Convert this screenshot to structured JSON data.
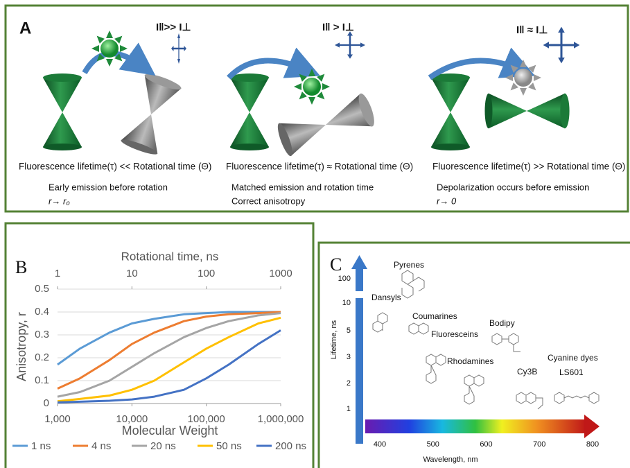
{
  "panel_a": {
    "label": "A",
    "scenarios": [
      {
        "header": "I‖>> I⊥",
        "caption": "Fluorescence lifetime(τ) << Rotational time (Θ)",
        "lines": [
          "Early emission before rotation",
          "r→ r₀"
        ]
      },
      {
        "header": "I‖ > I⊥",
        "caption": "Fluorescence lifetime(τ) ≈ Rotational time (Θ)",
        "lines": [
          "Matched emission and rotation time",
          "Correct anisotropy"
        ]
      },
      {
        "header": "I‖ ≈ I⊥",
        "caption": "Fluorescence lifetime(τ) >> Rotational time (Θ)",
        "lines": [
          "Depolarization occurs before emission",
          "r→ 0"
        ]
      }
    ]
  },
  "chart_data": {
    "type": "line",
    "label": "B",
    "x_label": "Molecular Weight",
    "y_label": "Anisotropy, r",
    "x2_label": "Rotational time, ns",
    "x": [
      1000,
      2000,
      5000,
      10000,
      20000,
      50000,
      100000,
      200000,
      500000,
      1000000
    ],
    "series": [
      {
        "name": "1 ns",
        "color": "#5b9bd5",
        "values": [
          0.17,
          0.24,
          0.31,
          0.35,
          0.37,
          0.39,
          0.395,
          0.4,
          0.4,
          0.4
        ]
      },
      {
        "name": "4 ns",
        "color": "#ed7d31",
        "values": [
          0.065,
          0.11,
          0.19,
          0.26,
          0.31,
          0.36,
          0.38,
          0.39,
          0.395,
          0.4
        ]
      },
      {
        "name": "20 ns",
        "color": "#a5a5a5",
        "values": [
          0.03,
          0.05,
          0.1,
          0.16,
          0.22,
          0.29,
          0.33,
          0.36,
          0.385,
          0.395
        ]
      },
      {
        "name": "50 ns",
        "color": "#ffc000",
        "values": [
          0.01,
          0.02,
          0.035,
          0.06,
          0.1,
          0.18,
          0.24,
          0.29,
          0.35,
          0.375
        ]
      },
      {
        "name": "200 ns",
        "color": "#4472c4",
        "values": [
          0.005,
          0.008,
          0.012,
          0.018,
          0.03,
          0.06,
          0.11,
          0.17,
          0.26,
          0.32
        ]
      }
    ],
    "xscale": "log",
    "xlim": [
      1000,
      1000000
    ],
    "xticks": [
      {
        "value": 1000,
        "label": "1,000"
      },
      {
        "value": 10000,
        "label": "10,000"
      },
      {
        "value": 100000,
        "label": "100,000"
      },
      {
        "value": 1000000,
        "label": "1,000,000"
      }
    ],
    "x2scale": "log",
    "x2lim": [
      1,
      1000
    ],
    "x2ticks": [
      1,
      10,
      100,
      1000
    ],
    "ylim": [
      0,
      0.5
    ],
    "yticks": [
      0,
      0.1,
      0.2,
      0.3,
      0.4,
      0.5
    ],
    "grid": true,
    "legend": "bottom"
  },
  "panel_c": {
    "label": "C",
    "y_label": "Lifetime, ns",
    "x_label": "Wavelength, nm",
    "y_ticks": [
      100,
      10,
      5,
      3,
      2,
      1
    ],
    "x_ticks": [
      400,
      500,
      600,
      700,
      800
    ],
    "dyes": [
      "Pyrenes",
      "Dansyls",
      "Coumarines",
      "Fluoresceins",
      "Bodipy",
      "Rhodamines",
      "Cy3B",
      "Cyanine dyes",
      "LS601"
    ]
  }
}
